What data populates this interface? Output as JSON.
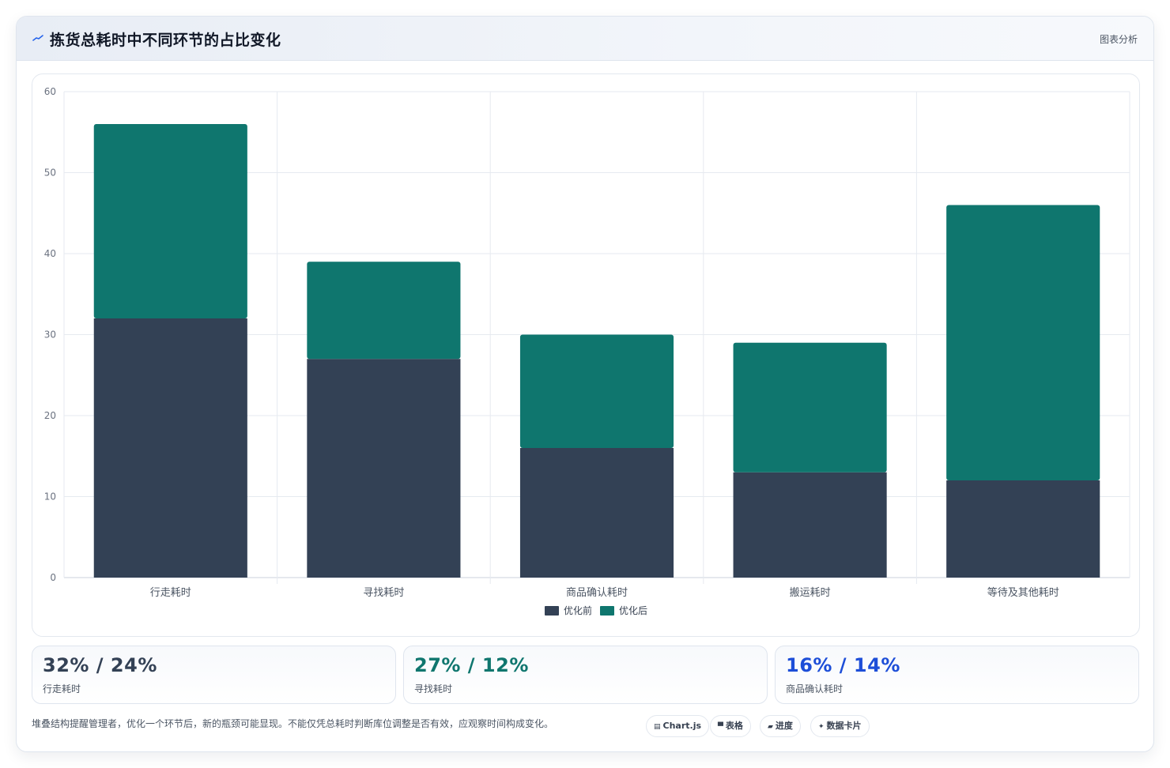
{
  "header": {
    "title": "拣货总耗时中不同环节的占比变化",
    "right_label": "图表分析"
  },
  "colors": {
    "before": "#334155",
    "after": "#0f766e",
    "stat_blue": "#1d4ed8"
  },
  "chart_data": {
    "type": "bar",
    "stacked": true,
    "categories": [
      "行走耗时",
      "寻找耗时",
      "商品确认耗时",
      "搬运耗时",
      "等待及其他耗时"
    ],
    "series": [
      {
        "name": "优化前",
        "values": [
          32,
          27,
          16,
          13,
          12
        ]
      },
      {
        "name": "优化后",
        "values": [
          24,
          12,
          14,
          16,
          34
        ]
      }
    ],
    "ylim": [
      0,
      60
    ],
    "yticks": [
      0,
      10,
      20,
      30,
      40,
      50,
      60
    ],
    "grid": true,
    "legend": "bottom"
  },
  "stats": [
    {
      "value": "32% / 24%",
      "label": "行走耗时",
      "color": "#334155"
    },
    {
      "value": "27% / 12%",
      "label": "寻找耗时",
      "color": "#0f766e"
    },
    {
      "value": "16% / 14%",
      "label": "商品确认耗时",
      "color": "#1d4ed8"
    }
  ],
  "footer": {
    "note": "堆叠结构提醒管理者，优化一个环节后，新的瓶颈可能显现。不能仅凭总耗时判断库位调整是否有效，应观察时间构成变化。",
    "chips": [
      {
        "icon": "chart-icon",
        "glyph": "▤",
        "label": "Chart.js"
      },
      {
        "icon": "table-icon",
        "glyph": "▀",
        "label": "表格"
      },
      {
        "icon": "progress-icon",
        "glyph": "▰",
        "label": "进度"
      },
      {
        "icon": "sparkle-icon",
        "glyph": "✦",
        "label": "数据卡片"
      }
    ]
  }
}
